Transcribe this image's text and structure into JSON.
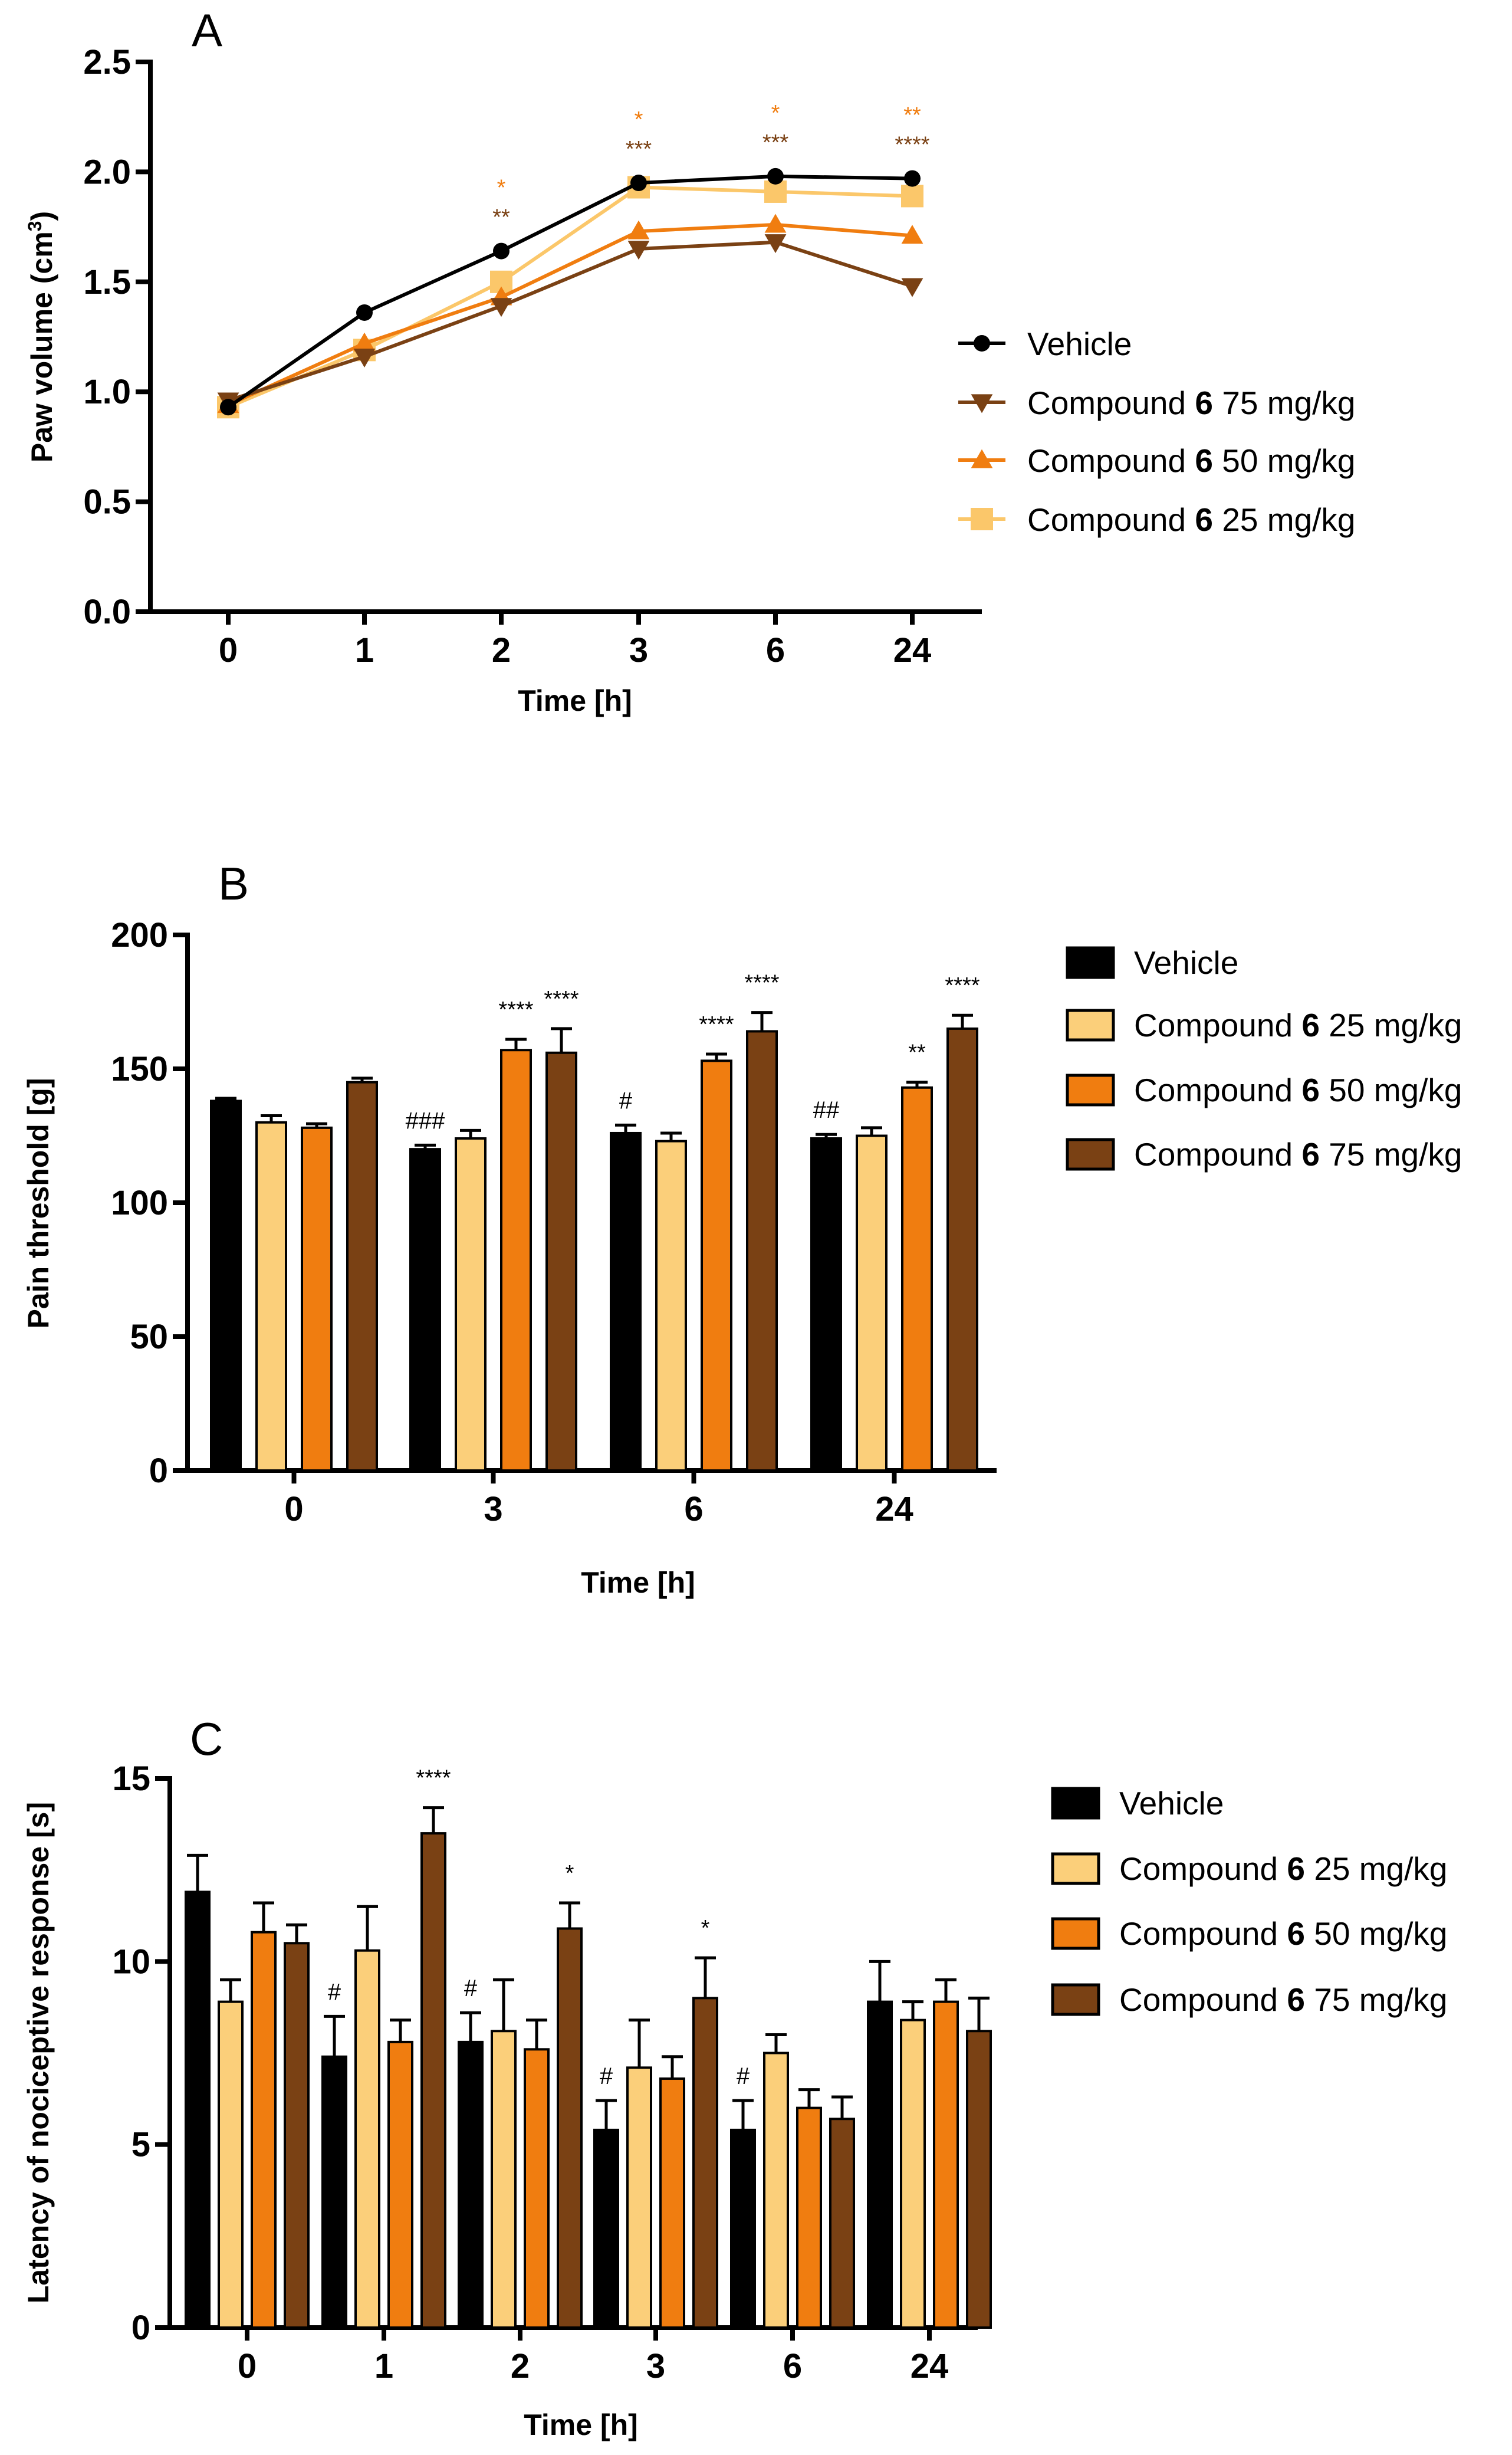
{
  "figure": "three-panel pharmacology figure",
  "chart_data": [
    {
      "panel": "A",
      "type": "line",
      "title": "",
      "xlabel": "Time [h]",
      "ylabel": "Paw volume (cm",
      "ylabel_sup": "3",
      "ylabel_close": ")",
      "categories": [
        "0",
        "1",
        "2",
        "3",
        "6",
        "24"
      ],
      "ylim": [
        0.0,
        2.5
      ],
      "yticks": [
        0.0,
        0.5,
        1.0,
        1.5,
        2.0,
        2.5
      ],
      "ytick_labels": [
        "0.0",
        "0.5",
        "1.0",
        "1.5",
        "2.0",
        "2.5"
      ],
      "legend_position": "right",
      "series": [
        {
          "name": "Vehicle",
          "label_prefix": "Vehicle",
          "label_bold": "",
          "label_suffix": "",
          "color": "#000000",
          "marker": "circle",
          "values": [
            0.93,
            1.36,
            1.64,
            1.95,
            1.98,
            1.97
          ]
        },
        {
          "name": "Compound 6 75 mg/kg",
          "label_prefix": "Compound ",
          "label_bold": "6",
          "label_suffix": " 75 mg/kg",
          "color": "#7a4114",
          "marker": "triangle-down",
          "values": [
            0.96,
            1.16,
            1.39,
            1.65,
            1.68,
            1.48
          ]
        },
        {
          "name": "Compound 6 50 mg/kg",
          "label_prefix": "Compound ",
          "label_bold": "6",
          "label_suffix": " 50 mg/kg",
          "color": "#f07d10",
          "marker": "triangle-up",
          "values": [
            0.94,
            1.22,
            1.43,
            1.73,
            1.76,
            1.71
          ]
        },
        {
          "name": "Compound 6 25 mg/kg",
          "label_prefix": "Compound ",
          "label_bold": "6",
          "label_suffix": " 25 mg/kg",
          "color": "#fbc76a",
          "marker": "square",
          "values": [
            0.93,
            1.19,
            1.5,
            1.93,
            1.91,
            1.89
          ]
        }
      ],
      "annotations": [
        {
          "category": "2",
          "orange": "*",
          "brown": "**"
        },
        {
          "category": "3",
          "orange": "*",
          "brown": "***"
        },
        {
          "category": "6",
          "orange": "*",
          "brown": "***"
        },
        {
          "category": "24",
          "orange": "**",
          "brown": "****"
        }
      ],
      "annotation_colors": {
        "orange": "#f07d10",
        "brown": "#7a4114"
      }
    },
    {
      "panel": "B",
      "type": "bar",
      "title": "",
      "xlabel": "Time [h]",
      "ylabel": "Pain threshold [g]",
      "categories": [
        "0",
        "3",
        "6",
        "24"
      ],
      "ylim": [
        0,
        200
      ],
      "yticks": [
        0,
        50,
        100,
        150,
        200
      ],
      "ytick_labels": [
        "0",
        "50",
        "100",
        "150",
        "200"
      ],
      "legend_position": "right",
      "series": [
        {
          "name": "Vehicle",
          "label_prefix": "Vehicle",
          "label_bold": "",
          "label_suffix": "",
          "color": "#000000",
          "values": [
            138,
            120,
            126,
            124
          ],
          "errors": [
            1,
            1.5,
            3,
            1.5
          ]
        },
        {
          "name": "Compound 6 25 mg/kg",
          "label_prefix": "Compound ",
          "label_bold": "6",
          "label_suffix": " 25 mg/kg",
          "color": "#fbcf7a",
          "values": [
            130,
            124,
            123,
            125
          ],
          "errors": [
            2.5,
            3,
            3,
            3
          ]
        },
        {
          "name": "Compound 6 50 mg/kg",
          "label_prefix": "Compound ",
          "label_bold": "6",
          "label_suffix": " 50 mg/kg",
          "color": "#f07d10",
          "values": [
            128,
            157,
            153,
            143
          ],
          "errors": [
            1.5,
            4,
            2.5,
            2
          ]
        },
        {
          "name": "Compound 6 75 mg/kg",
          "label_prefix": "Compound ",
          "label_bold": "6",
          "label_suffix": " 75 mg/kg",
          "color": "#7a4114",
          "values": [
            145,
            156,
            164,
            165
          ],
          "errors": [
            1.5,
            9,
            7,
            5
          ]
        }
      ],
      "annotations": [
        {
          "category": "3",
          "series": 0,
          "text": "###"
        },
        {
          "category": "3",
          "series": 2,
          "text": "****"
        },
        {
          "category": "3",
          "series": 3,
          "text": "****"
        },
        {
          "category": "6",
          "series": 0,
          "text": "#"
        },
        {
          "category": "6",
          "series": 2,
          "text": "****"
        },
        {
          "category": "6",
          "series": 3,
          "text": "****"
        },
        {
          "category": "24",
          "series": 0,
          "text": "##"
        },
        {
          "category": "24",
          "series": 2,
          "text": "**"
        },
        {
          "category": "24",
          "series": 3,
          "text": "****"
        }
      ]
    },
    {
      "panel": "C",
      "type": "bar",
      "title": "",
      "xlabel": "Time [h]",
      "ylabel": "Latency of nociceptive  response [s]",
      "categories": [
        "0",
        "1",
        "2",
        "3",
        "6",
        "24"
      ],
      "ylim": [
        0,
        15
      ],
      "yticks": [
        0,
        5,
        10,
        15
      ],
      "ytick_labels": [
        "0",
        "5",
        "10",
        "15"
      ],
      "legend_position": "right",
      "series": [
        {
          "name": "Vehicle",
          "label_prefix": "Vehicle",
          "label_bold": "",
          "label_suffix": "",
          "color": "#000000",
          "values": [
            11.9,
            7.4,
            7.8,
            5.4,
            5.4,
            8.9
          ],
          "errors": [
            1.0,
            1.1,
            0.8,
            0.8,
            0.8,
            1.1
          ]
        },
        {
          "name": "Compound 6 25 mg/kg",
          "label_prefix": "Compound ",
          "label_bold": "6",
          "label_suffix": " 25 mg/kg",
          "color": "#fbcf7a",
          "values": [
            8.9,
            10.3,
            8.1,
            7.1,
            7.5,
            8.4
          ],
          "errors": [
            0.6,
            1.2,
            1.4,
            1.3,
            0.5,
            0.5
          ]
        },
        {
          "name": "Compound 6 50 mg/kg",
          "label_prefix": "Compound ",
          "label_bold": "6",
          "label_suffix": " 50 mg/kg",
          "color": "#f07d10",
          "values": [
            10.8,
            7.8,
            7.6,
            6.8,
            6.0,
            8.9
          ],
          "errors": [
            0.8,
            0.6,
            0.8,
            0.6,
            0.5,
            0.6
          ]
        },
        {
          "name": "Compound 6 75 mg/kg",
          "label_prefix": "Compound ",
          "label_bold": "6",
          "label_suffix": " 75 mg/kg",
          "color": "#7a4114",
          "values": [
            10.5,
            13.5,
            10.9,
            9.0,
            5.7,
            8.1
          ],
          "errors": [
            0.5,
            0.7,
            0.7,
            1.1,
            0.6,
            0.9
          ]
        }
      ],
      "annotations": [
        {
          "category": "1",
          "series": 0,
          "text": "#"
        },
        {
          "category": "1",
          "series": 3,
          "text": "****"
        },
        {
          "category": "2",
          "series": 0,
          "text": "#"
        },
        {
          "category": "2",
          "series": 3,
          "text": "*"
        },
        {
          "category": "3",
          "series": 0,
          "text": "#"
        },
        {
          "category": "3",
          "series": 3,
          "text": "*"
        },
        {
          "category": "6",
          "series": 0,
          "text": "#"
        }
      ]
    }
  ]
}
